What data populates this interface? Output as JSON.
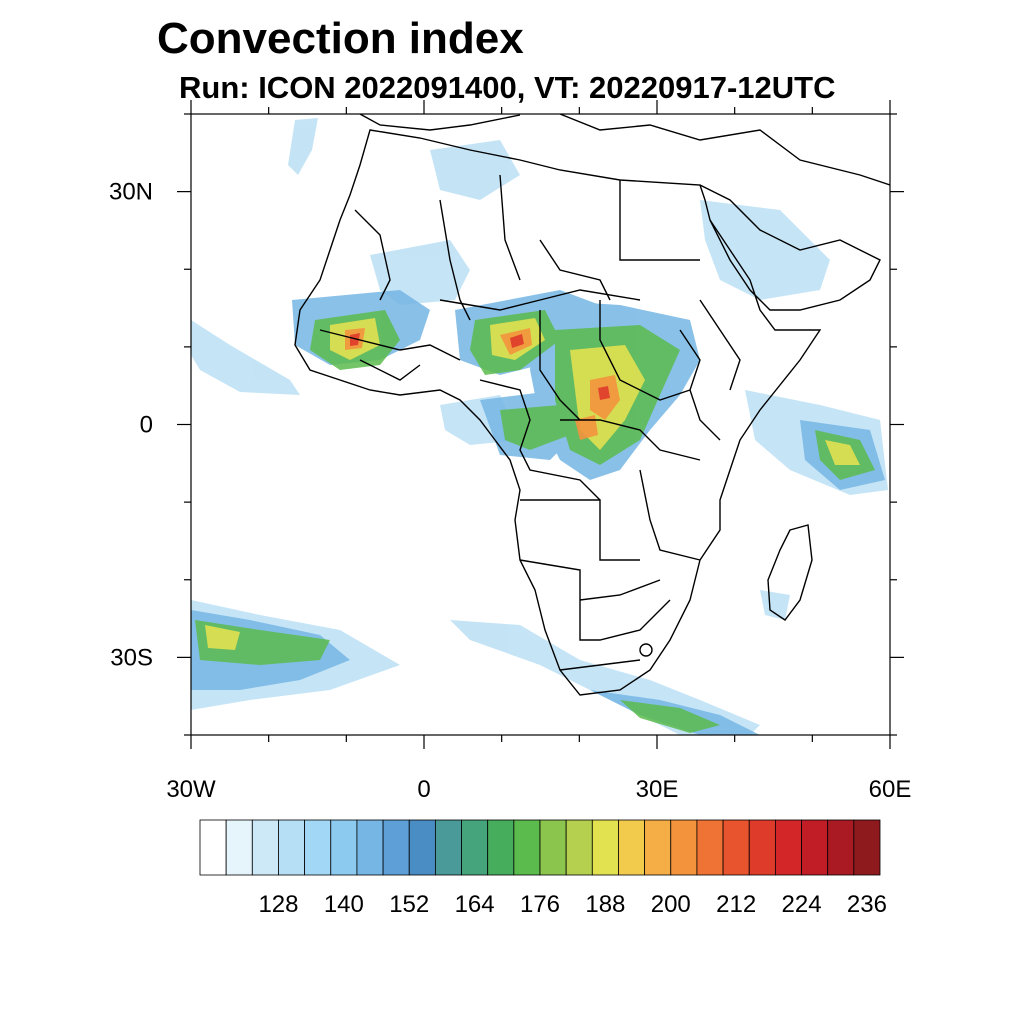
{
  "title": "Convection index",
  "subtitle": "Run: ICON 2022091400,  VT: 20220917-12UTC",
  "map": {
    "region": "Africa",
    "lon_range": [
      -30,
      60
    ],
    "lat_range": [
      -40,
      40
    ],
    "lat_ticks": [
      {
        "value": 30,
        "label": "30N"
      },
      {
        "value": 0,
        "label": "0"
      },
      {
        "value": -30,
        "label": "30S"
      }
    ],
    "lon_ticks": [
      {
        "value": -30,
        "label": "30W"
      },
      {
        "value": 0,
        "label": "0"
      },
      {
        "value": 30,
        "label": "30E"
      },
      {
        "value": 60,
        "label": "60E"
      }
    ]
  },
  "colorbar": {
    "colors": [
      "#ffffff",
      "#e6f4fc",
      "#cde9f8",
      "#b6def5",
      "#a2d8f5",
      "#8ccaf0",
      "#75b6e4",
      "#5d9fd6",
      "#4a8cc4",
      "#4a9a9a",
      "#45a47c",
      "#46ad5c",
      "#5bbb4c",
      "#8cc54d",
      "#b5d04f",
      "#e2e150",
      "#f2cb4c",
      "#f5ae45",
      "#f3943d",
      "#ee7334",
      "#e8542d",
      "#df3b2b",
      "#d22629",
      "#c11d26",
      "#aa1a23",
      "#8f1a1e"
    ],
    "labels": [
      "128",
      "140",
      "152",
      "164",
      "176",
      "188",
      "200",
      "212",
      "224",
      "236"
    ]
  }
}
